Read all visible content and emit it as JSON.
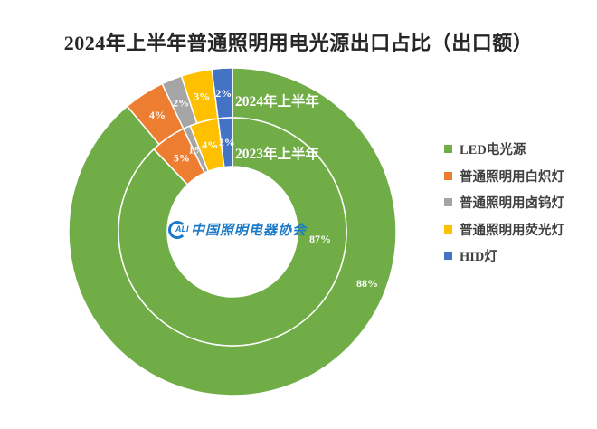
{
  "title": "2024年上半年普通照明用电光源出口占比（出口额）",
  "logo": {
    "mark": "ALI",
    "text": "中国照明电器协会"
  },
  "legend": [
    {
      "label": "LED电光源",
      "color": "#70AD47"
    },
    {
      "label": "普通照明用白炽灯",
      "color": "#ED7D31"
    },
    {
      "label": "普通照明用卤钨灯",
      "color": "#A5A5A5"
    },
    {
      "label": "普通照明用荧光灯",
      "color": "#FFC000"
    },
    {
      "label": "HID灯",
      "color": "#4472C4"
    }
  ],
  "ring_labels": {
    "outer": "2024年上半年",
    "inner": "2023年上半年"
  },
  "chart_data": {
    "type": "pie",
    "subtype": "doughnut-multi-ring",
    "title": "2024年上半年普通照明用电光源出口占比（出口额）",
    "categories": [
      "LED电光源",
      "普通照明用白炽灯",
      "普通照明用卤钨灯",
      "普通照明用荧光灯",
      "HID灯"
    ],
    "colors": [
      "#70AD47",
      "#ED7D31",
      "#A5A5A5",
      "#FFC000",
      "#4472C4"
    ],
    "series": [
      {
        "name": "2024年上半年",
        "ring": "outer",
        "values": [
          88,
          4,
          2,
          3,
          2
        ],
        "labels": [
          "88%",
          "4%",
          "2%",
          "3%",
          "2%"
        ]
      },
      {
        "name": "2023年上半年",
        "ring": "inner",
        "values": [
          87,
          5,
          1,
          4,
          2
        ],
        "labels": [
          "87%",
          "5%",
          "1%",
          "4%",
          "2%"
        ]
      }
    ],
    "unit": "%",
    "legend_position": "right",
    "start_angle": "12 o'clock, clockwise"
  }
}
